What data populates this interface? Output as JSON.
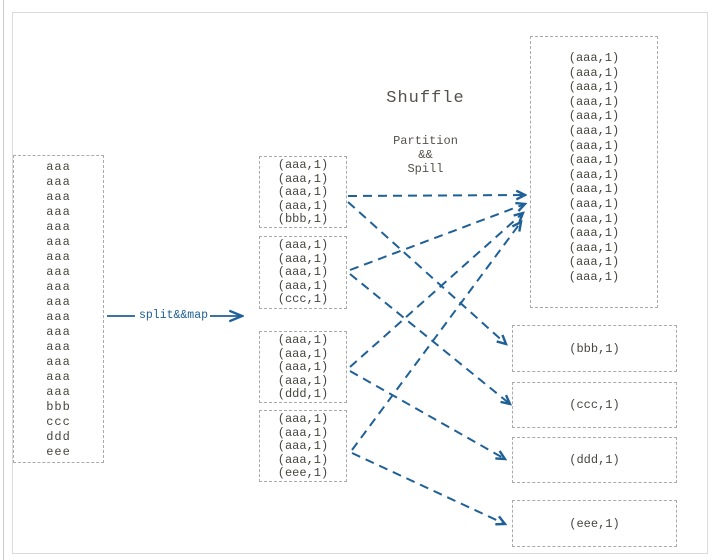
{
  "page": {
    "title": "Shuffle",
    "partition_label_lines": [
      "Partition",
      "&&",
      "Spill"
    ],
    "map_arrow_label": "split&&map"
  },
  "input_box": {
    "lines": [
      "aaa",
      "aaa",
      "aaa",
      "aaa",
      "aaa",
      "aaa",
      "aaa",
      "aaa",
      "aaa",
      "aaa",
      "aaa",
      "aaa",
      "aaa",
      "aaa",
      "aaa",
      "aaa",
      "bbb",
      "ccc",
      "ddd",
      "eee"
    ]
  },
  "map_output_boxes": [
    {
      "lines": [
        "(aaa,1)",
        "(aaa,1)",
        "(aaa,1)",
        "(aaa,1)",
        "(bbb,1)"
      ]
    },
    {
      "lines": [
        "(aaa,1)",
        "(aaa,1)",
        "(aaa,1)",
        "(aaa,1)",
        "(ccc,1)"
      ]
    },
    {
      "lines": [
        "(aaa,1)",
        "(aaa,1)",
        "(aaa,1)",
        "(aaa,1)",
        "(ddd,1)"
      ]
    },
    {
      "lines": [
        "(aaa,1)",
        "(aaa,1)",
        "(aaa,1)",
        "(aaa,1)",
        "(eee,1)"
      ]
    }
  ],
  "shuffle_output": {
    "aaa_box_lines": [
      "(aaa,1)",
      "(aaa,1)",
      "(aaa,1)",
      "(aaa,1)",
      "(aaa,1)",
      "(aaa,1)",
      "(aaa,1)",
      "(aaa,1)",
      "(aaa,1)",
      "(aaa,1)",
      "(aaa,1)",
      "(aaa,1)",
      "(aaa,1)",
      "(aaa,1)",
      "(aaa,1)",
      "(aaa,1)"
    ],
    "bbb_label": "(bbb,1)",
    "ccc_label": "(ccc,1)",
    "ddd_label": "(ddd,1)",
    "eee_label": "(eee,1)"
  },
  "colors": {
    "arrow": "#1f6096",
    "boxBorder": "#aaaaaa",
    "text": "#47453f",
    "title": "#55524c",
    "frame": "#dcdcdc"
  }
}
